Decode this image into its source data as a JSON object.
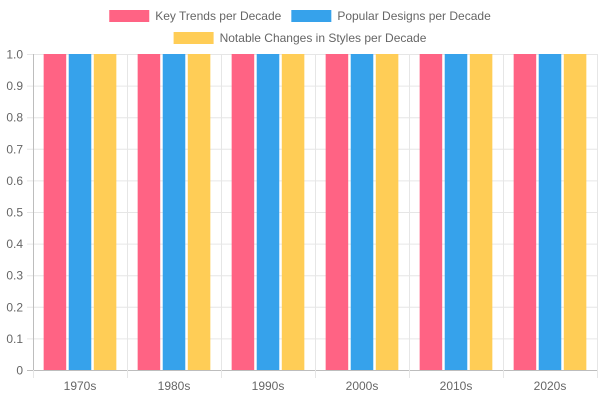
{
  "chart_data": {
    "type": "bar",
    "categories": [
      "1970s",
      "1980s",
      "1990s",
      "2000s",
      "2010s",
      "2020s"
    ],
    "series": [
      {
        "name": "Key Trends per Decade",
        "values": [
          1,
          1,
          1,
          1,
          1,
          1
        ],
        "color": "#ff6384"
      },
      {
        "name": "Popular Designs per Decade",
        "values": [
          1,
          1,
          1,
          1,
          1,
          1
        ],
        "color": "#36a2eb"
      },
      {
        "name": "Notable Changes in Styles per Decade",
        "values": [
          1,
          1,
          1,
          1,
          1,
          1
        ],
        "color": "#ffcd56"
      }
    ],
    "ylim": [
      0,
      1
    ],
    "yticks": [
      "0",
      "0.1",
      "0.2",
      "0.3",
      "0.4",
      "0.5",
      "0.6",
      "0.7",
      "0.8",
      "0.9",
      "1.0"
    ],
    "grid": true,
    "legend_position": "top"
  }
}
